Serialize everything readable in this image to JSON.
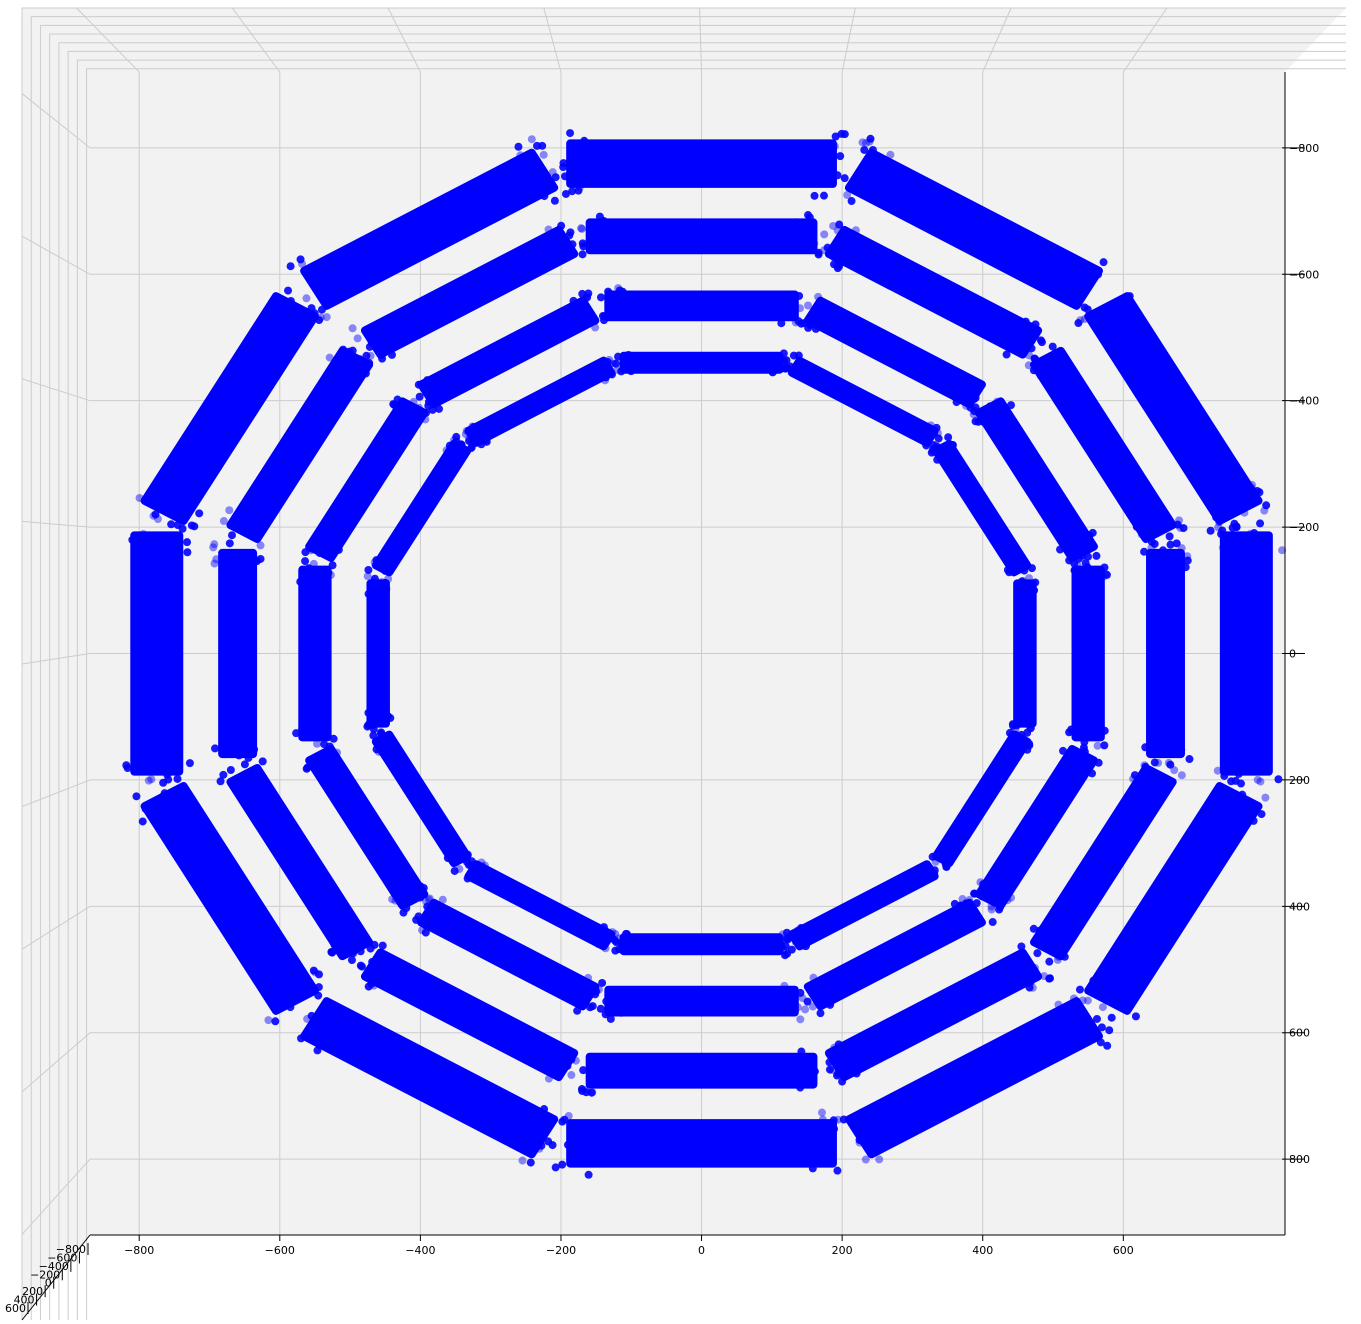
{
  "chart_data": {
    "type": "scatter",
    "view": "3d-projection-top-down",
    "title": "",
    "xlabel": "",
    "ylabel": "",
    "zlabel": "",
    "xlim": [
      -870,
      830
    ],
    "ylim": [
      -920,
      920
    ],
    "x_ticks": [
      -800,
      -600,
      -400,
      -200,
      0,
      200,
      400,
      600
    ],
    "x_tick_labels": [
      "−800",
      "−600",
      "−400",
      "−200",
      "0",
      "200",
      "400",
      "600"
    ],
    "y_ticks": [
      -800,
      -600,
      -400,
      -200,
      0,
      200,
      400,
      600,
      800
    ],
    "y_tick_labels": [
      "−800",
      "−600",
      "−400",
      "−200",
      "0",
      "200",
      "400",
      "600",
      "800"
    ],
    "z_ticks": [
      -800,
      -600,
      -400,
      -200,
      0,
      200,
      400,
      600
    ],
    "z_tick_labels": [
      "−800",
      "−600",
      "−400",
      "−200",
      "0",
      "200",
      "400",
      "600"
    ],
    "grid": true,
    "marker_color": "#0000ff",
    "pane_color": "#f2f2f2",
    "grid_color": "#cccccc",
    "series": [
      {
        "shape": "regular-polygon",
        "sides": 12,
        "rotation_deg": 0,
        "rings": [
          {
            "apothem": 460,
            "thickness": 22
          },
          {
            "apothem": 550,
            "thickness": 36
          },
          {
            "apothem": 660,
            "thickness": 44
          },
          {
            "apothem": 775,
            "thickness": 64
          }
        ]
      }
    ]
  }
}
